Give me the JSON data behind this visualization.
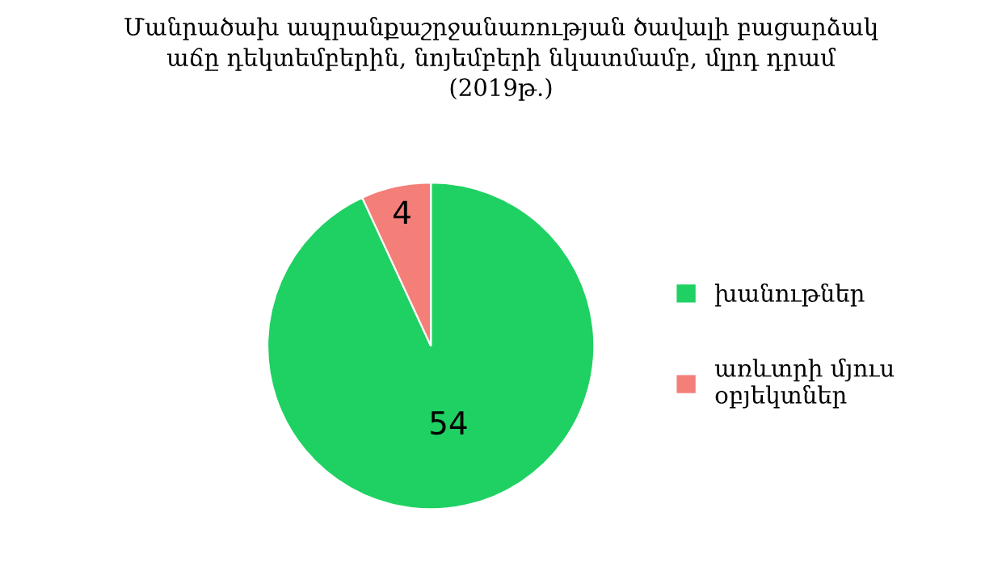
{
  "chart_data": {
    "type": "pie",
    "title": "Մանրածախ ապրանքաշրջանառության ծավալի բացարձակ\nաճը դեկտեմբերին, նոյեմբերի նկատմամբ, մլրդ դրամ\n(2019թ.)",
    "categories": [
      "խանութներ",
      "առևտրի մյուս\nօբյեկտներ"
    ],
    "values": [
      54,
      4
    ],
    "colors": [
      "#1fd162",
      "#f47e78"
    ],
    "data_labels": true,
    "legend": "right"
  }
}
